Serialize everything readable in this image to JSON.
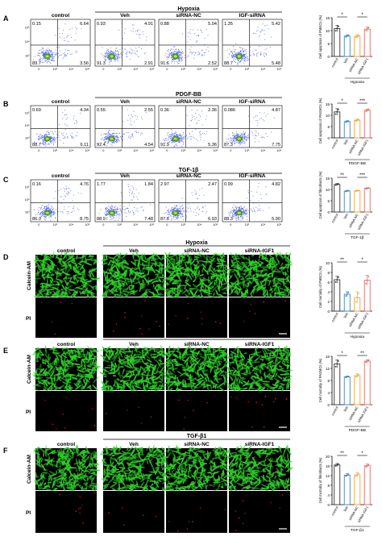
{
  "panels": [
    {
      "letter": "A",
      "treatment": "Hypoxia",
      "groups": [
        "control",
        "Veh",
        "siRNA-NC",
        "IGF-siRNA"
      ],
      "quadrants": [
        [
          "0.15",
          "6.64",
          "89.7",
          "3.56"
        ],
        [
          "0.93",
          "4.91",
          "91.3",
          "2.91"
        ],
        [
          "0.88",
          "5.04",
          "91.6",
          "2.52"
        ],
        [
          "1.35",
          "5.42",
          "88.7",
          "5.48"
        ]
      ],
      "chart": {
        "ylabel": "Cell apoptosis of PMECs (%)",
        "categories": [
          "control",
          "Veh",
          "siRNA-NC",
          "siRNA-IGF1"
        ],
        "values": [
          10.8,
          7.9,
          7.8,
          10.6
        ],
        "errors": [
          1.2,
          0.5,
          0.6,
          0.8
        ],
        "ylim": [
          0,
          15
        ],
        "yticks": [
          "0",
          "5",
          "10",
          "15"
        ],
        "sig": [
          "*",
          "*"
        ],
        "xlabel": "Hypoxia"
      }
    },
    {
      "letter": "B",
      "treatment": "PDGF-BB",
      "groups": [
        "control",
        "Veh",
        "siRNA-NC",
        "IGF-siRNA"
      ],
      "quadrants": [
        [
          "0.69",
          "4.34",
          "88.7",
          "6.11"
        ],
        [
          "0.55",
          "2.55",
          "92.4",
          "4.54"
        ],
        [
          "0.36",
          "2.36",
          "91.9",
          "5.36"
        ],
        [
          "0.086",
          "4.87",
          "87.3",
          "7.75"
        ]
      ],
      "chart": {
        "ylabel": "Cell apoptosis of PASMCs (%)",
        "categories": [
          "control",
          "Veh",
          "siRNA-NC",
          "siRNA-IGF1"
        ],
        "values": [
          11.5,
          7.2,
          7.8,
          12.2
        ],
        "errors": [
          1.4,
          0.4,
          0.5,
          0.6
        ],
        "ylim": [
          0,
          15
        ],
        "yticks": [
          "0",
          "5",
          "10",
          "15"
        ],
        "sig": [
          "*",
          "***"
        ],
        "xlabel": "PDGF-BB"
      }
    },
    {
      "letter": "C",
      "treatment": "TGF-1β",
      "groups": [
        "control",
        "Veh",
        "siRNA-NC",
        "IGF-siRNA"
      ],
      "quadrants": [
        [
          "0.16",
          "4.76",
          "86.3",
          "8.75"
        ],
        [
          "1.77",
          "1.84",
          "88.9",
          "7.48"
        ],
        [
          "2.97",
          "2.47",
          "87.6",
          "6.93"
        ],
        [
          "0.99",
          "4.82",
          "88.3",
          "5.90"
        ]
      ],
      "chart": {
        "ylabel": "Cell apoptosis of fibroblasts (%)",
        "categories": [
          "control",
          "Veh",
          "siRNA-NC",
          "siRNA-IGF1"
        ],
        "values": [
          12.2,
          9.3,
          9.4,
          10.5
        ],
        "errors": [
          0.4,
          0.3,
          0.3,
          0.3
        ],
        "ylim": [
          0,
          15
        ],
        "yticks": [
          "0",
          "5",
          "10",
          "15"
        ],
        "sig": [
          "**",
          "***"
        ],
        "xlabel": "TGF-1β"
      }
    },
    {
      "letter": "D",
      "treatment": "Hypoxia",
      "groups": [
        "control",
        "Veh",
        "siRNA-NC",
        "siRNA-IGF1"
      ],
      "rows": [
        "Calcein-AM",
        "PI"
      ],
      "chart": {
        "ylabel": "Cell mortality of PMECs (%)",
        "categories": [
          "control",
          "Veh",
          "siRNA-NC",
          "siRNA-IGF1"
        ],
        "values": [
          6.5,
          3.5,
          2.8,
          6.4
        ],
        "errors": [
          0.7,
          0.5,
          1.2,
          1.0
        ],
        "ylim": [
          0,
          10
        ],
        "yticks": [
          "0",
          "2",
          "4",
          "6",
          "8",
          "10"
        ],
        "sig": [
          "**",
          "*"
        ],
        "xlabel": "Hypoxia"
      }
    },
    {
      "letter": "E",
      "treatment": "PDGF-BB",
      "groups": [
        "control",
        "Veh",
        "siRNA-NC",
        "siRNA-IGF1"
      ],
      "rows": [
        "Calcein-AM",
        "PI"
      ],
      "chart": {
        "ylabel": "Cell mortality of PASMCs (%)",
        "categories": [
          "control",
          "Veh",
          "siRNA-NC",
          "siRNA-IGF1"
        ],
        "values": [
          13.5,
          9.2,
          9.6,
          14.4
        ],
        "errors": [
          1.3,
          0.3,
          0.6,
          0.5
        ],
        "ylim": [
          0,
          16
        ],
        "yticks": [
          "0",
          "4",
          "8",
          "12",
          "16"
        ],
        "sig": [
          "*",
          "**"
        ],
        "xlabel": "PDGF-BB"
      }
    },
    {
      "letter": "F",
      "treatment": "TGF-β1",
      "groups": [
        "control",
        "Veh",
        "siRNA-NC",
        "siRNA-IGF1"
      ],
      "rows": [
        "Calcein-AM",
        "PI"
      ],
      "chart": {
        "ylabel": "Cell mortality of fibroblasts (%)",
        "categories": [
          "control",
          "Veh",
          "siRNA-NC",
          "siRNA-IGF1"
        ],
        "values": [
          16.4,
          12.2,
          12.3,
          16.1
        ],
        "errors": [
          0.6,
          0.6,
          0.8,
          0.7
        ],
        "ylim": [
          0,
          20
        ],
        "yticks": [
          "0",
          "4",
          "8",
          "12",
          "16",
          "20"
        ],
        "sig": [
          "**",
          "*"
        ],
        "xlabel": "TGF-β1"
      }
    }
  ],
  "flow_axis": {
    "x_ticks": [
      "0",
      "10³",
      "10⁴",
      "10⁵"
    ],
    "y_ticks": [
      "10³",
      "10⁴",
      "10⁵"
    ]
  },
  "colors": {
    "control": "#333333",
    "Veh": "#3e86c6",
    "siRNA-NC": "#f2a33a",
    "siRNA-IGF1": "#e26a6a",
    "calcein": "#2fd12a",
    "pi": "#e0202a",
    "flow_dots": "#3a4bd8"
  }
}
